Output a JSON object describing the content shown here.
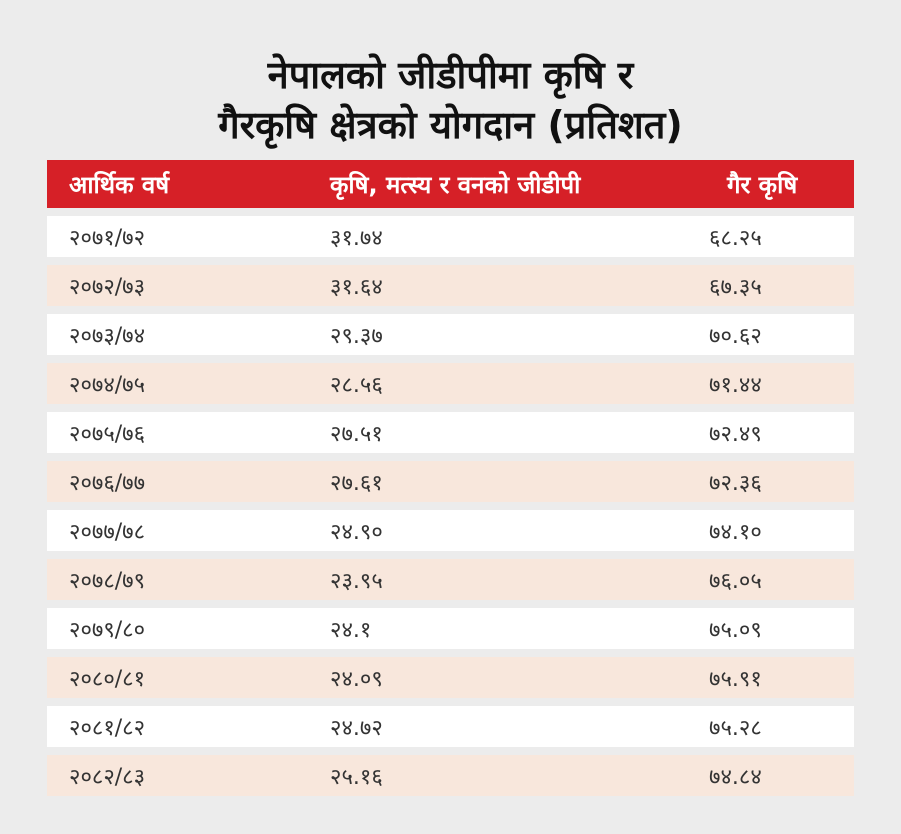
{
  "title": {
    "line1": "नेपालको जीडीपीमा कृषि र",
    "line2": "गैरकृषि क्षेत्रको योगदान (प्रतिशत)"
  },
  "columns": [
    "आर्थिक वर्ष",
    "कृषि, मत्स्य र वनको जीडीपी",
    "गैर कृषि"
  ],
  "rows": [
    [
      "२०७१/७२",
      "३१.७४",
      "६८.२५"
    ],
    [
      "२०७२/७३",
      "३१.६४",
      "६७.३५"
    ],
    [
      "२०७३/७४",
      "२९.३७",
      "७०.६२"
    ],
    [
      "२०७४/७५",
      "२८.५६",
      "७१.४४"
    ],
    [
      "२०७५/७६",
      "२७.५१",
      "७२.४९"
    ],
    [
      "२०७६/७७",
      "२७.६१",
      "७२.३६"
    ],
    [
      "२०७७/७८",
      "२४.९०",
      "७४.१०"
    ],
    [
      "२०७८/७९",
      "२३.९५",
      "७६.०५"
    ],
    [
      "२०७९/८०",
      "२४.१",
      "७५.०९"
    ],
    [
      "२०८०/८१",
      "२४.०९",
      "७५.९१"
    ],
    [
      "२०८१/८२",
      "२४.७२",
      "७५.२८"
    ],
    [
      "२०८२/८३",
      "२५.१६",
      "७४.८४"
    ]
  ],
  "colors": {
    "header_bg": "#d62027",
    "row_odd": "#ffffff",
    "row_even": "#f8e7dc",
    "page_bg": "#ececec"
  }
}
